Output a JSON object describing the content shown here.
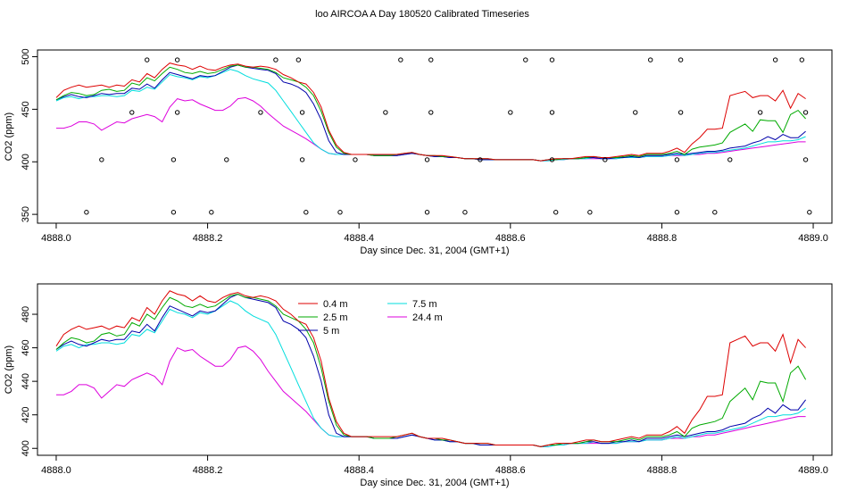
{
  "title": "loo AIRCOA A  Day 180520  Calibrated Timeseries",
  "chart_data": [
    {
      "type": "line",
      "xlabel": "Day since Dec. 31, 2004 (GMT+1)",
      "ylabel": "CO2 (ppm)",
      "xlim": [
        4887.98,
        4889.02
      ],
      "ylim": [
        345,
        503
      ],
      "xticks": [
        {
          "value": 4888.0,
          "label": "4888.0"
        },
        {
          "value": 4888.2,
          "label": "4888.2"
        },
        {
          "value": 4888.4,
          "label": "4888.4"
        },
        {
          "value": 4888.6,
          "label": "4888.6"
        },
        {
          "value": 4888.8,
          "label": "4888.8"
        },
        {
          "value": 4889.0,
          "label": "4889.0"
        }
      ],
      "yticks": [
        {
          "value": 350,
          "label": "350"
        },
        {
          "value": 400,
          "label": "400"
        },
        {
          "value": 450,
          "label": "450"
        },
        {
          "value": 500,
          "label": "500"
        }
      ],
      "points": [
        {
          "x": 4888.04,
          "y": 352
        },
        {
          "x": 4888.06,
          "y": 402
        },
        {
          "x": 4888.1,
          "y": 447
        },
        {
          "x": 4888.12,
          "y": 497
        },
        {
          "x": 4888.155,
          "y": 352
        },
        {
          "x": 4888.155,
          "y": 402
        },
        {
          "x": 4888.16,
          "y": 447
        },
        {
          "x": 4888.16,
          "y": 497
        },
        {
          "x": 4888.205,
          "y": 352
        },
        {
          "x": 4888.225,
          "y": 402
        },
        {
          "x": 4888.27,
          "y": 447
        },
        {
          "x": 4888.29,
          "y": 497
        },
        {
          "x": 4888.32,
          "y": 497
        },
        {
          "x": 4888.325,
          "y": 447
        },
        {
          "x": 4888.325,
          "y": 402
        },
        {
          "x": 4888.33,
          "y": 352
        },
        {
          "x": 4888.375,
          "y": 352
        },
        {
          "x": 4888.395,
          "y": 402
        },
        {
          "x": 4888.435,
          "y": 447
        },
        {
          "x": 4888.455,
          "y": 497
        },
        {
          "x": 4888.49,
          "y": 352
        },
        {
          "x": 4888.49,
          "y": 402
        },
        {
          "x": 4888.495,
          "y": 447
        },
        {
          "x": 4888.495,
          "y": 497
        },
        {
          "x": 4888.54,
          "y": 352
        },
        {
          "x": 4888.56,
          "y": 402
        },
        {
          "x": 4888.6,
          "y": 447
        },
        {
          "x": 4888.62,
          "y": 497
        },
        {
          "x": 4888.655,
          "y": 497
        },
        {
          "x": 4888.655,
          "y": 447
        },
        {
          "x": 4888.655,
          "y": 402
        },
        {
          "x": 4888.66,
          "y": 352
        },
        {
          "x": 4888.705,
          "y": 352
        },
        {
          "x": 4888.725,
          "y": 402
        },
        {
          "x": 4888.765,
          "y": 447
        },
        {
          "x": 4888.785,
          "y": 497
        },
        {
          "x": 4888.82,
          "y": 352
        },
        {
          "x": 4888.82,
          "y": 402
        },
        {
          "x": 4888.825,
          "y": 447
        },
        {
          "x": 4888.825,
          "y": 497
        },
        {
          "x": 4888.87,
          "y": 352
        },
        {
          "x": 4888.89,
          "y": 402
        },
        {
          "x": 4888.93,
          "y": 447
        },
        {
          "x": 4888.95,
          "y": 497
        },
        {
          "x": 4888.985,
          "y": 497
        },
        {
          "x": 4888.99,
          "y": 447
        },
        {
          "x": 4888.99,
          "y": 402
        },
        {
          "x": 4888.995,
          "y": 352
        }
      ]
    },
    {
      "type": "line",
      "xlabel": "Day since Dec. 31, 2004 (GMT+1)",
      "ylabel": "CO2 (ppm)",
      "xlim": [
        4887.98,
        4889.02
      ],
      "ylim": [
        398,
        496
      ],
      "xticks": [
        {
          "value": 4888.0,
          "label": "4888.0"
        },
        {
          "value": 4888.2,
          "label": "4888.2"
        },
        {
          "value": 4888.4,
          "label": "4888.4"
        },
        {
          "value": 4888.6,
          "label": "4888.6"
        },
        {
          "value": 4888.8,
          "label": "4888.8"
        },
        {
          "value": 4889.0,
          "label": "4889.0"
        }
      ],
      "yticks": [
        {
          "value": 400,
          "label": "400"
        },
        {
          "value": 420,
          "label": "420"
        },
        {
          "value": 440,
          "label": "440"
        },
        {
          "value": 460,
          "label": "460"
        },
        {
          "value": 480,
          "label": "480"
        }
      ],
      "legend": {
        "placement": "top-center",
        "entries": [
          {
            "name": "0.4 m",
            "color": "#dd0000"
          },
          {
            "name": "2.5 m",
            "color": "#00aa00"
          },
          {
            "name": "5 m",
            "color": "#0000aa"
          },
          {
            "name": "7.5 m",
            "color": "#00dddd"
          },
          {
            "name": "24.4 m",
            "color": "#dd00dd"
          }
        ]
      }
    }
  ],
  "x": [
    4888.0,
    4888.01,
    4888.02,
    4888.03,
    4888.04,
    4888.05,
    4888.06,
    4888.07,
    4888.08,
    4888.09,
    4888.1,
    4888.11,
    4888.12,
    4888.13,
    4888.14,
    4888.15,
    4888.16,
    4888.17,
    4888.18,
    4888.19,
    4888.2,
    4888.21,
    4888.22,
    4888.23,
    4888.24,
    4888.25,
    4888.26,
    4888.27,
    4888.28,
    4888.29,
    4888.3,
    4888.31,
    4888.32,
    4888.33,
    4888.34,
    4888.35,
    4888.36,
    4888.37,
    4888.38,
    4888.39,
    4888.4,
    4888.41,
    4888.42,
    4888.43,
    4888.44,
    4888.45,
    4888.46,
    4888.47,
    4888.48,
    4888.49,
    4888.5,
    4888.51,
    4888.52,
    4888.53,
    4888.54,
    4888.55,
    4888.56,
    4888.57,
    4888.58,
    4888.59,
    4888.6,
    4888.61,
    4888.62,
    4888.63,
    4888.64,
    4888.65,
    4888.66,
    4888.67,
    4888.68,
    4888.69,
    4888.7,
    4888.71,
    4888.72,
    4888.73,
    4888.74,
    4888.75,
    4888.76,
    4888.77,
    4888.78,
    4888.79,
    4888.8,
    4888.81,
    4888.82,
    4888.83,
    4888.84,
    4888.85,
    4888.86,
    4888.87,
    4888.88,
    4888.89,
    4888.9,
    4888.91,
    4888.92,
    4888.93,
    4888.94,
    4888.95,
    4888.96,
    4888.97,
    4888.98,
    4888.99
  ],
  "series": [
    {
      "name": "0.4 m",
      "color": "#dd0000",
      "values": [
        461,
        468,
        471,
        473,
        471,
        472,
        473,
        471,
        473,
        472,
        478,
        476,
        484,
        480,
        488,
        494,
        492,
        491,
        488,
        491,
        488,
        487,
        490,
        492,
        493,
        491,
        490,
        491,
        490,
        488,
        483,
        480,
        476,
        474,
        466,
        452,
        430,
        416,
        409,
        407,
        407,
        407,
        407,
        407,
        407,
        407,
        408,
        409,
        407,
        406,
        406,
        406,
        405,
        404,
        403,
        403,
        403,
        403,
        402,
        402,
        402,
        402,
        402,
        402,
        401,
        402,
        403,
        403,
        403,
        404,
        405,
        405,
        404,
        404,
        405,
        406,
        407,
        406,
        408,
        408,
        408,
        410,
        413,
        409,
        417,
        423,
        431,
        431,
        432,
        463,
        465,
        467,
        461,
        463,
        463,
        458,
        468,
        451,
        465,
        460
      ]
    },
    {
      "name": "2.5 m",
      "color": "#00aa00",
      "values": [
        459,
        463,
        466,
        465,
        463,
        464,
        468,
        469,
        467,
        468,
        475,
        473,
        480,
        477,
        484,
        490,
        488,
        485,
        484,
        486,
        484,
        485,
        488,
        491,
        492,
        490,
        490,
        489,
        488,
        485,
        480,
        478,
        476,
        471,
        463,
        448,
        428,
        414,
        408,
        407,
        407,
        407,
        406,
        406,
        406,
        407,
        408,
        409,
        407,
        406,
        406,
        405,
        405,
        404,
        403,
        403,
        403,
        403,
        402,
        402,
        402,
        402,
        402,
        402,
        401,
        402,
        402,
        403,
        403,
        403,
        404,
        405,
        404,
        404,
        404,
        405,
        406,
        405,
        407,
        407,
        407,
        408,
        410,
        407,
        412,
        414,
        415,
        416,
        418,
        428,
        432,
        436,
        429,
        440,
        439,
        439,
        428,
        445,
        449,
        441
      ]
    },
    {
      "name": "5 m",
      "color": "#0000aa",
      "values": [
        459,
        462,
        464,
        462,
        461,
        463,
        465,
        464,
        465,
        465,
        470,
        469,
        474,
        470,
        478,
        485,
        483,
        481,
        479,
        482,
        481,
        482,
        486,
        490,
        492,
        490,
        489,
        488,
        487,
        484,
        476,
        474,
        471,
        466,
        455,
        440,
        420,
        409,
        407,
        407,
        407,
        407,
        406,
        406,
        406,
        406,
        407,
        408,
        407,
        406,
        405,
        405,
        404,
        404,
        403,
        403,
        402,
        402,
        402,
        402,
        402,
        402,
        402,
        402,
        401,
        402,
        402,
        403,
        403,
        403,
        404,
        404,
        403,
        403,
        404,
        404,
        405,
        404,
        406,
        406,
        406,
        407,
        408,
        407,
        408,
        409,
        410,
        410,
        411,
        413,
        414,
        415,
        418,
        420,
        424,
        421,
        426,
        423,
        423,
        429
      ]
    },
    {
      "name": "7.5 m",
      "color": "#00dddd",
      "values": [
        458,
        461,
        462,
        460,
        462,
        462,
        463,
        463,
        462,
        463,
        468,
        467,
        471,
        469,
        476,
        483,
        481,
        480,
        478,
        481,
        480,
        482,
        485,
        488,
        486,
        482,
        479,
        477,
        475,
        468,
        458,
        448,
        438,
        428,
        418,
        412,
        408,
        407,
        407,
        407,
        407,
        407,
        406,
        406,
        406,
        406,
        407,
        408,
        407,
        406,
        405,
        405,
        404,
        404,
        403,
        403,
        402,
        402,
        402,
        402,
        402,
        402,
        402,
        402,
        401,
        401,
        402,
        402,
        403,
        403,
        403,
        404,
        403,
        403,
        403,
        404,
        404,
        404,
        405,
        405,
        405,
        406,
        407,
        406,
        407,
        408,
        409,
        409,
        410,
        411,
        412,
        413,
        415,
        417,
        419,
        419,
        420,
        420,
        421,
        424
      ]
    },
    {
      "name": "24.4 m",
      "color": "#dd00dd",
      "values": [
        432,
        432,
        434,
        438,
        438,
        436,
        430,
        434,
        438,
        437,
        441,
        443,
        445,
        443,
        438,
        452,
        460,
        458,
        459,
        455,
        452,
        449,
        449,
        453,
        460,
        461,
        458,
        453,
        446,
        440,
        434,
        430,
        426,
        422,
        417,
        412,
        408,
        407,
        407,
        407,
        407,
        407,
        406,
        406,
        406,
        406,
        407,
        408,
        407,
        406,
        405,
        405,
        404,
        404,
        403,
        403,
        402,
        402,
        402,
        402,
        402,
        402,
        402,
        402,
        401,
        401,
        402,
        402,
        403,
        403,
        403,
        403,
        403,
        403,
        403,
        404,
        404,
        404,
        405,
        405,
        405,
        406,
        406,
        406,
        407,
        407,
        408,
        408,
        409,
        410,
        411,
        412,
        413,
        414,
        415,
        416,
        417,
        418,
        419,
        419
      ]
    }
  ]
}
